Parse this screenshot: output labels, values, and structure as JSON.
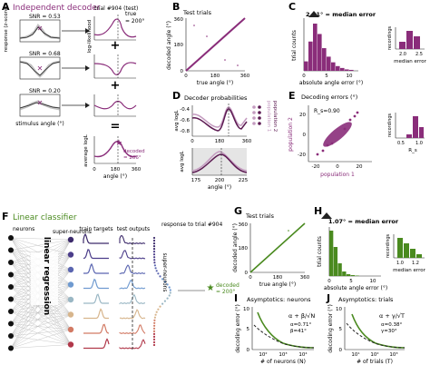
{
  "colors": {
    "purple": "#8a2d7a",
    "purple_light": "#c49bc0",
    "green": "#4a8a1f",
    "green_light": "#9cc27a",
    "gray": "#999999",
    "dark": "#222222"
  },
  "panels": {
    "A": {
      "letter": "A",
      "title": "Independent decoder",
      "ylabel_resp": "response (z-score)",
      "xlabel_stim": "stimulus angle (°)",
      "snr": [
        "SNR = 0.53",
        "SNR = 0.68",
        "SNR = 0.20"
      ],
      "trial_label": "trial #904 (test)",
      "ylabel_ll": "log-likelihood",
      "true_label": "true",
      "true_value": "= 200°",
      "decoded_label": "decoded",
      "decoded_value": "= 206°",
      "ylabel_avg": "average logL",
      "xlabel_angle": "angle (°)",
      "ticks_0_360": [
        "0",
        "180",
        "360"
      ],
      "ticks_y": [
        "0",
        "1"
      ],
      "plus": "+",
      "equals": "="
    },
    "B": {
      "letter": "B",
      "title": "Test trials",
      "ylabel": "decoded angle (°)",
      "xlabel": "true angle (°)",
      "xticks": [
        "0",
        "180",
        "360"
      ],
      "yticks": [
        "0",
        "180",
        "360"
      ]
    },
    "C": {
      "letter": "C",
      "annotation": "2.41° = median error",
      "ylabel": "trial counts",
      "xlabel": "absolute angle error (°)",
      "xticks": [
        "0",
        "5",
        "10"
      ],
      "inset_ylabel": "recordings",
      "inset_xlabel": "median error",
      "inset_xticks": [
        "2.0",
        "2.5"
      ],
      "chart_data": {
        "type": "bar",
        "categories": [
          "0",
          "1",
          "2",
          "3",
          "4",
          "5",
          "6",
          "7",
          "8",
          "9",
          "10"
        ],
        "values": [
          20,
          62,
          100,
          78,
          48,
          30,
          18,
          10,
          6,
          3,
          2
        ],
        "ylim": [
          0,
          100
        ]
      }
    },
    "D": {
      "letter": "D",
      "title": "Decoder probabilities",
      "ylabel_top": "avg logL",
      "ylabel_bottom": "avg logL",
      "yticks_top": [
        "-0.4",
        "-0.6",
        "-0.8"
      ],
      "xticks_top": [
        "0",
        "180",
        "360"
      ],
      "xticks_bottom": [
        "175",
        "200",
        "225"
      ],
      "xlabel": "angle (°)",
      "legend": [
        "population 1",
        "population 2"
      ]
    },
    "E": {
      "letter": "E",
      "title": "Decoding errors (°)",
      "rs": "R_s=0.90",
      "xlabel": "population 1",
      "ylabel": "population 2",
      "xticks": [
        "-20",
        "0",
        "20"
      ],
      "yticks": [
        "-20",
        "0",
        "20"
      ],
      "inset_ylabel": "recordings",
      "inset_xlabel": "R_s",
      "inset_xticks": [
        "0.5",
        "1.0"
      ]
    },
    "F": {
      "letter": "F",
      "title": "Linear classifier",
      "neurons": "neurons",
      "super_neurons": "super-neurons",
      "train_targets": "train targets",
      "test_outputs": "test outputs",
      "response_to": "response to trial #904",
      "regression": "linear regression",
      "super_neurons_vertical": "super-neurons",
      "decoded_label": "decoded",
      "decoded_value": "= 200°"
    },
    "G": {
      "letter": "G",
      "title": "Test trials",
      "ylabel": "decoded angle (°)",
      "xlabel": "true angle (°)",
      "xticks": [
        "0",
        "180",
        "360"
      ],
      "yticks": [
        "0",
        "180",
        "360"
      ]
    },
    "H": {
      "letter": "H",
      "annotation": "1.07° = median error",
      "ylabel": "trial counts",
      "xlabel": "absolute angle error (°)",
      "xticks": [
        "0",
        "5",
        "10"
      ],
      "inset_ylabel": "recordings",
      "inset_xlabel": "median error",
      "inset_xticks": [
        "1.0",
        "1.2"
      ],
      "chart_data": {
        "type": "bar",
        "categories": [
          "0",
          "1",
          "2",
          "3",
          "4",
          "5",
          "6",
          "7",
          "8",
          "9",
          "10"
        ],
        "values": [
          100,
          64,
          28,
          10,
          4,
          2,
          1,
          0,
          0,
          0,
          0
        ],
        "ylim": [
          0,
          100
        ]
      }
    },
    "I": {
      "letter": "I",
      "title": "Asymptotics: neurons",
      "ylabel": "decoding error (°)",
      "xlabel": "# of neurons (N)",
      "formula": "α + β/√N",
      "alpha": "α=0.71°",
      "beta": "β=41°",
      "xticks": [
        "10²",
        "10³",
        "10⁴"
      ],
      "yticks": [
        "0",
        "5",
        "10"
      ]
    },
    "J": {
      "letter": "J",
      "title": "Asymptotics: trials",
      "ylabel": "decoding error (°)",
      "xlabel": "# of trials (T)",
      "formula": "α + γ/√T",
      "alpha": "α=0.38°",
      "gamma": "γ=30°",
      "xticks": [
        "10¹",
        "10²",
        "10³"
      ],
      "yticks": [
        "0",
        "5",
        "10"
      ]
    }
  }
}
